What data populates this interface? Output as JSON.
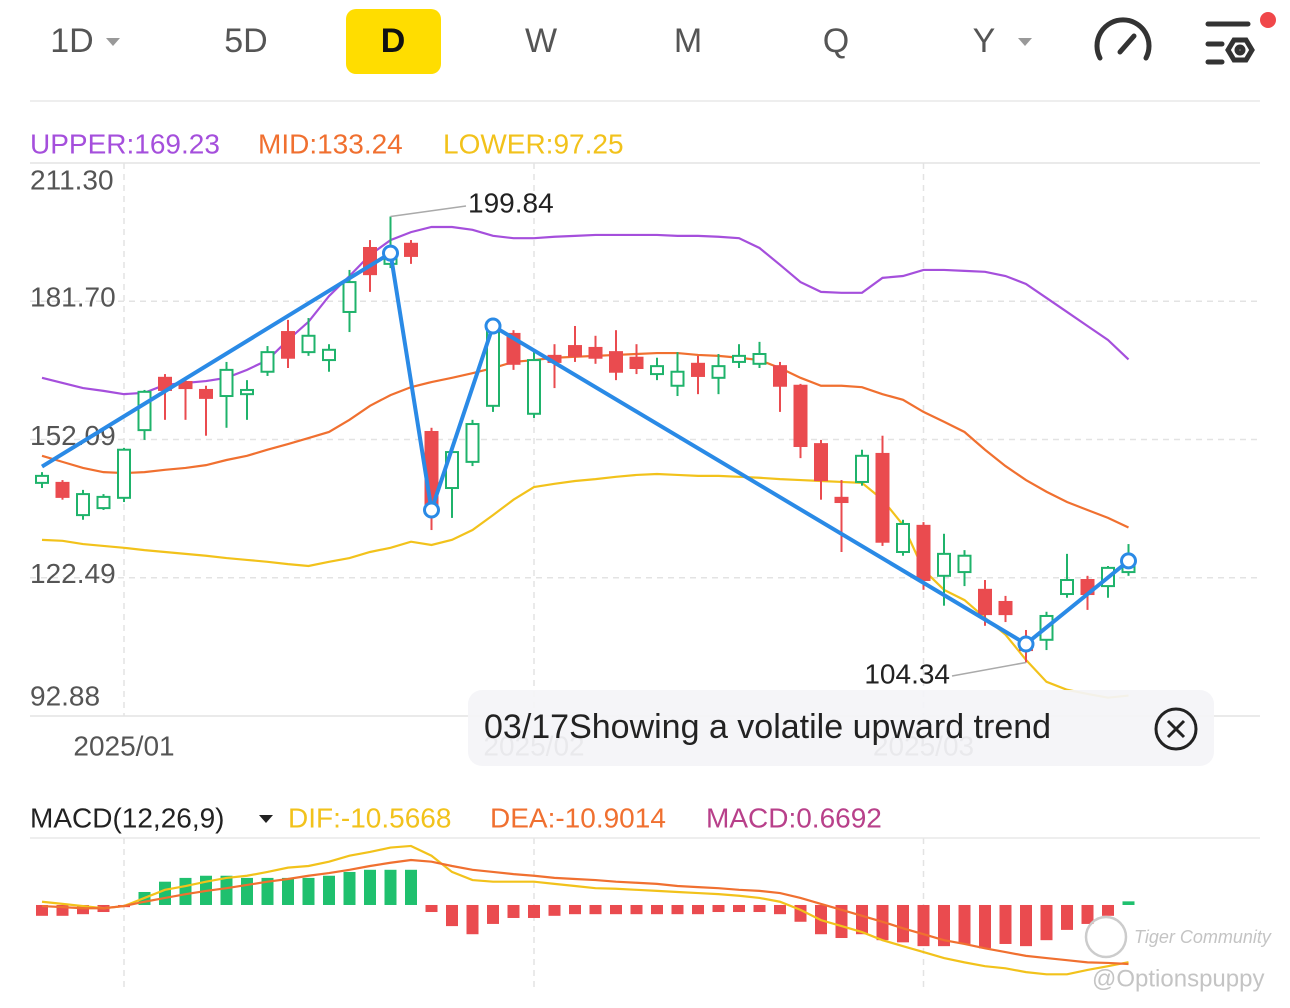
{
  "tabs": [
    "1D",
    "5D",
    "D",
    "W",
    "M",
    "Q",
    "Y"
  ],
  "selected_tab": 2,
  "dropdown_tabs": [
    0,
    6
  ],
  "chart_data": [
    {
      "type": "candlestick",
      "categories": [
        null,
        null,
        null,
        null,
        "2025/01",
        null,
        null,
        null,
        null,
        null,
        null,
        null,
        null,
        null,
        null,
        null,
        null,
        null,
        null,
        null,
        null,
        null,
        null,
        null,
        "2025/02",
        null,
        null,
        null,
        null,
        null,
        null,
        null,
        null,
        null,
        null,
        null,
        null,
        null,
        null,
        null,
        null,
        null,
        null,
        "2025/03",
        null,
        null,
        null,
        null,
        null,
        null,
        null,
        null,
        null,
        null
      ],
      "open": [
        142.8,
        142.8,
        135.9,
        137.4,
        139.6,
        154.1,
        165.3,
        164.4,
        162.7,
        161.4,
        161.8,
        166.6,
        175.1,
        170.8,
        169.1,
        179.4,
        193.1,
        189.7,
        194.0,
        153.7,
        141.7,
        147.3,
        159.3,
        174.7,
        157.6,
        170.0,
        172.1,
        171.7,
        170.8,
        169.6,
        166.1,
        163.6,
        168.3,
        165.3,
        168.7,
        168.3,
        167.8,
        163.6,
        151.1,
        139.6,
        143.0,
        149.0,
        128.0,
        133.6,
        122.9,
        123.7,
        119.9,
        117.3,
        109.2,
        109.2,
        119.0,
        122.0,
        120.7,
        123.7
      ],
      "high": [
        145.1,
        143.4,
        141.3,
        140.4,
        150.3,
        162.7,
        166.1,
        165.3,
        163.6,
        168.7,
        164.8,
        172.1,
        177.7,
        178.1,
        172.5,
        188.4,
        194.8,
        199.84,
        194.8,
        154.6,
        150.3,
        156.3,
        177.3,
        175.5,
        171.3,
        172.5,
        176.4,
        174.3,
        175.5,
        172.5,
        169.6,
        170.8,
        170.0,
        170.4,
        172.5,
        173.0,
        168.7,
        164.0,
        152.0,
        143.4,
        149.9,
        152.9,
        134.9,
        134.4,
        131.9,
        128.4,
        122.0,
        118.6,
        111.3,
        115.2,
        127.6,
        122.9,
        125.0,
        129.7
      ],
      "low": [
        141.7,
        139.2,
        134.9,
        137.0,
        138.7,
        152.0,
        156.3,
        156.3,
        152.9,
        154.6,
        156.3,
        165.7,
        167.4,
        170.0,
        166.6,
        175.1,
        183.7,
        188.8,
        189.7,
        132.7,
        135.3,
        146.4,
        158.0,
        167.0,
        156.7,
        163.1,
        168.7,
        168.3,
        164.8,
        166.1,
        164.8,
        161.4,
        161.8,
        161.8,
        167.4,
        167.4,
        158.0,
        148.1,
        139.2,
        128.0,
        142.2,
        129.3,
        127.2,
        119.9,
        116.5,
        120.7,
        112.2,
        113.0,
        104.34,
        107.0,
        118.2,
        115.6,
        118.2,
        122.9
      ],
      "close": [
        144.3,
        139.8,
        140.4,
        139.8,
        149.9,
        162.3,
        162.7,
        163.1,
        161.0,
        167.0,
        162.7,
        170.8,
        169.6,
        174.3,
        171.3,
        185.8,
        187.5,
        192.7,
        191.4,
        137.4,
        149.4,
        155.4,
        175.5,
        168.3,
        169.1,
        168.7,
        170.0,
        169.6,
        166.6,
        167.4,
        167.8,
        166.6,
        165.7,
        167.8,
        170.0,
        170.4,
        163.6,
        150.7,
        143.4,
        138.7,
        148.6,
        130.2,
        134.0,
        122.0,
        127.6,
        127.2,
        114.7,
        114.7,
        107.0,
        114.3,
        122.0,
        119.0,
        124.6,
        126.3
      ],
      "up_color": "#1fb36b",
      "down_color": "#ea4b4f",
      "series": [
        {
          "name": "UPPER:169.23",
          "color": "#a54fdc",
          "values": [
            165.3,
            164.2,
            163.1,
            162.5,
            161.8,
            162.1,
            163.8,
            164.2,
            164.6,
            165.3,
            167.0,
            169.1,
            173.4,
            177.3,
            182.8,
            187.1,
            191.6,
            194.8,
            196.5,
            197.6,
            197.6,
            197.0,
            195.7,
            195.2,
            195.2,
            195.5,
            195.7,
            195.9,
            195.9,
            195.9,
            195.9,
            195.7,
            195.7,
            195.5,
            195.2,
            193.1,
            189.5,
            185.8,
            183.7,
            183.5,
            183.5,
            186.7,
            187.1,
            188.4,
            188.4,
            188.2,
            188.0,
            187.1,
            185.4,
            182.4,
            179.4,
            176.4,
            173.4,
            169.23
          ]
        },
        {
          "name": "MID:133.24",
          "color": "#f07030",
          "values": [
            148.6,
            147.3,
            146.0,
            145.1,
            144.9,
            145.1,
            145.6,
            146.0,
            146.6,
            147.7,
            148.6,
            149.9,
            151.1,
            152.4,
            153.7,
            156.3,
            159.3,
            161.6,
            163.3,
            164.4,
            165.3,
            166.3,
            167.4,
            168.7,
            169.1,
            169.6,
            169.8,
            170.0,
            170.2,
            170.4,
            170.6,
            170.6,
            170.2,
            170.0,
            169.6,
            169.1,
            167.4,
            165.3,
            163.6,
            163.6,
            163.3,
            161.8,
            160.6,
            158.0,
            155.9,
            153.7,
            149.9,
            146.4,
            143.4,
            140.9,
            138.7,
            137.0,
            135.3,
            133.24
          ]
        },
        {
          "name": "LOWER:97.25",
          "color": "#f2c21b",
          "values": [
            130.6,
            130.4,
            129.7,
            129.3,
            128.9,
            128.4,
            128.0,
            127.6,
            127.2,
            126.7,
            126.3,
            125.9,
            125.4,
            125.0,
            125.9,
            126.7,
            128.0,
            128.9,
            130.2,
            129.5,
            130.6,
            132.7,
            135.9,
            139.2,
            141.9,
            142.6,
            143.2,
            143.6,
            144.1,
            144.5,
            144.7,
            144.5,
            144.3,
            144.3,
            144.1,
            143.9,
            143.6,
            143.4,
            143.2,
            143.0,
            142.8,
            139.2,
            133.8,
            124.2,
            119.9,
            117.7,
            113.9,
            110.3,
            104.9,
            100.2,
            98.5,
            97.6,
            96.8,
            97.25
          ]
        }
      ],
      "trend": {
        "color": "#2a8ae6",
        "x": [
          0,
          17,
          19,
          22,
          48,
          53
        ],
        "values": [
          146.3,
          192.0,
          137.0,
          176.4,
          108.3,
          126.1
        ]
      },
      "ylim": [
        92.88,
        211.3
      ],
      "yticks": [
        {
          "value": 211.3,
          "label": "211.30"
        },
        {
          "value": 181.7,
          "label": "181.70"
        },
        {
          "value": 152.09,
          "label": "152.09"
        },
        {
          "value": 122.49,
          "label": "122.49"
        },
        {
          "value": 92.88,
          "label": "92.88"
        }
      ],
      "grid": true,
      "note": "03/17Showing a volatile upward trend"
    },
    {
      "type": "macd",
      "title": "MACD(12,26,9)",
      "up_color": "#1fc06e",
      "down_color": "#ea4b4f",
      "ylim": [
        -15.7,
        12
      ],
      "series": [
        {
          "name": "DIF:-10.5668",
          "color": "#f2c21b",
          "values": [
            0.6,
            0.2,
            -0.2,
            -0.6,
            -0.2,
            1.3,
            2.8,
            3.5,
            4.3,
            5.0,
            5.4,
            6.1,
            6.9,
            7.2,
            8.0,
            9.1,
            9.8,
            10.6,
            10.9,
            9.1,
            6.1,
            4.6,
            4.3,
            4.3,
            4.3,
            3.9,
            3.5,
            3.1,
            3.0,
            2.8,
            2.6,
            2.4,
            2.2,
            2.0,
            1.7,
            1.3,
            0.6,
            -0.9,
            -2.8,
            -3.9,
            -5.0,
            -6.5,
            -7.6,
            -8.7,
            -9.8,
            -10.6,
            -11.3,
            -11.7,
            -12.4,
            -12.8,
            -12.8,
            -12.0,
            -11.3,
            -10.5668
          ]
        },
        {
          "name": "DEA:-10.9014",
          "color": "#f07030",
          "values": [
            -0.2,
            -0.4,
            -0.6,
            -0.6,
            -0.2,
            0.6,
            1.3,
            2.0,
            2.6,
            3.1,
            3.7,
            4.3,
            4.8,
            5.4,
            5.9,
            6.5,
            7.2,
            7.8,
            8.3,
            8.0,
            7.2,
            6.5,
            6.1,
            5.7,
            5.4,
            5.0,
            4.8,
            4.6,
            4.3,
            4.1,
            3.9,
            3.5,
            3.3,
            3.1,
            2.8,
            2.6,
            2.2,
            1.3,
            0.2,
            -0.9,
            -2.0,
            -3.1,
            -4.3,
            -5.4,
            -6.5,
            -7.2,
            -8.0,
            -8.7,
            -9.4,
            -9.8,
            -10.2,
            -10.6,
            -10.7,
            -10.9014
          ]
        },
        {
          "name": "MACD:0.6692",
          "color": "#b8408a",
          "values": [
            -2.0,
            -2.0,
            -1.7,
            -1.3,
            -0.4,
            2.4,
            4.3,
            5.0,
            5.4,
            5.4,
            5.0,
            5.0,
            5.0,
            5.0,
            5.4,
            6.1,
            6.5,
            6.5,
            6.5,
            -1.3,
            -3.9,
            -5.4,
            -3.5,
            -2.4,
            -2.4,
            -2.0,
            -1.7,
            -1.7,
            -1.7,
            -1.7,
            -1.7,
            -1.7,
            -1.7,
            -1.3,
            -1.3,
            -1.3,
            -1.7,
            -3.1,
            -5.4,
            -6.1,
            -5.4,
            -6.5,
            -6.9,
            -7.6,
            -7.6,
            -7.2,
            -8.0,
            -7.2,
            -7.6,
            -6.5,
            -4.6,
            -3.5,
            -2.0,
            0.6692
          ]
        }
      ]
    }
  ],
  "watermark": [
    "Tiger Community",
    "@Optionspuppy"
  ]
}
